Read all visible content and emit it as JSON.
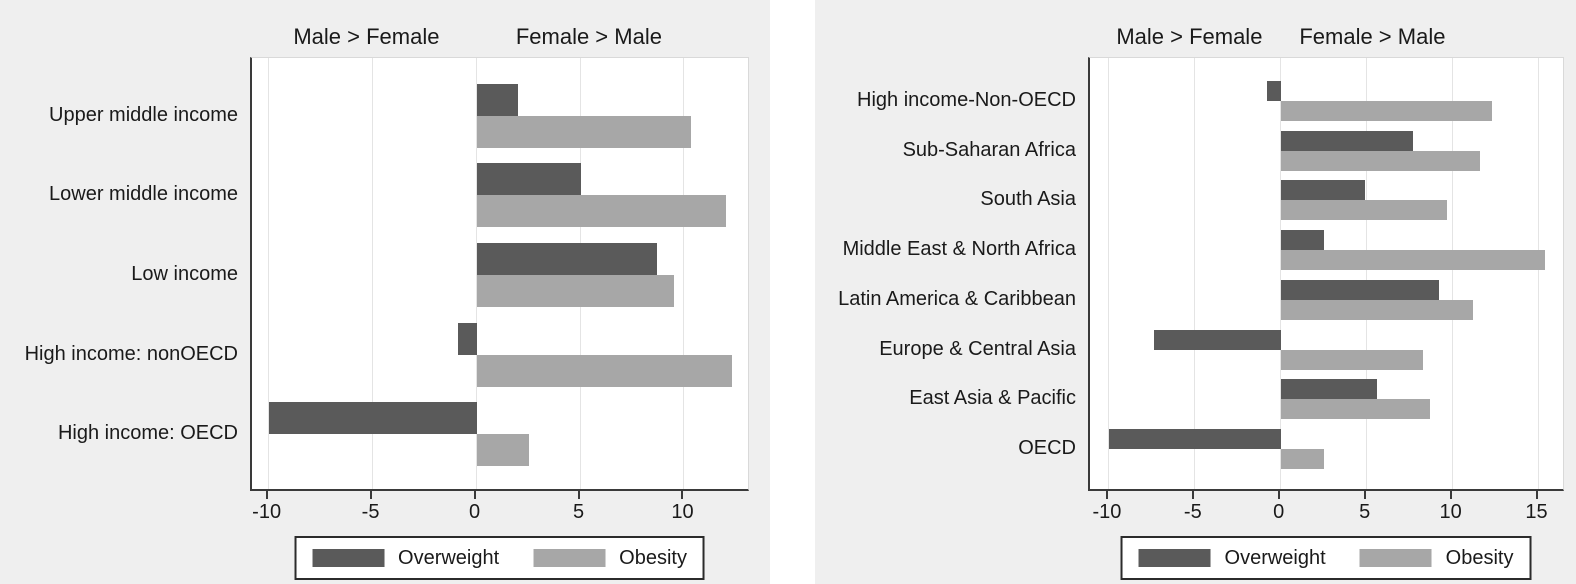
{
  "figure": {
    "description_left_header": "Male > Female",
    "description_right_header": "Female > Male"
  },
  "chart_data": [
    {
      "type": "bar",
      "orientation": "horizontal",
      "panel": "left",
      "header_left": "Male > Female",
      "header_right": "Female > Male",
      "header_positions_x": [
        -5.2,
        5.5
      ],
      "categories": [
        "Upper middle income",
        "Lower middle income",
        "Low income",
        "High income: nonOECD",
        "High income: OECD"
      ],
      "series": [
        {
          "name": "Overweight",
          "color": "#5a5a5a",
          "values": [
            2.0,
            5.0,
            8.7,
            -0.9,
            -10.0
          ]
        },
        {
          "name": "Obesity",
          "color": "#a7a7a7",
          "values": [
            10.3,
            12.0,
            9.5,
            12.3,
            2.5
          ]
        }
      ],
      "xticks": [
        -10,
        -5,
        0,
        5,
        10
      ],
      "xlim": [
        -10.8,
        13.2
      ],
      "grid": true,
      "legend_position": "bottom"
    },
    {
      "type": "bar",
      "orientation": "horizontal",
      "panel": "right",
      "header_left": "Male > Female",
      "header_right": "Female > Male",
      "header_positions_x": [
        -5.2,
        5.45
      ],
      "categories": [
        "High income-Non-OECD",
        "Sub-Saharan Africa",
        "South Asia",
        "Middle East & North Africa",
        "Latin America & Caribbean",
        "Europe & Central Asia",
        "East Asia & Pacific",
        "OECD"
      ],
      "series": [
        {
          "name": "Overweight",
          "color": "#5a5a5a",
          "values": [
            -0.8,
            7.7,
            4.9,
            2.5,
            9.2,
            -7.4,
            5.6,
            -10.0
          ]
        },
        {
          "name": "Obesity",
          "color": "#a7a7a7",
          "values": [
            12.3,
            11.6,
            9.7,
            15.4,
            11.2,
            8.3,
            8.7,
            2.5
          ]
        }
      ],
      "xticks": [
        -10,
        -5,
        0,
        5,
        10,
        15
      ],
      "xlim": [
        -11.1,
        16.6
      ],
      "grid": true,
      "legend_position": "bottom"
    }
  ]
}
